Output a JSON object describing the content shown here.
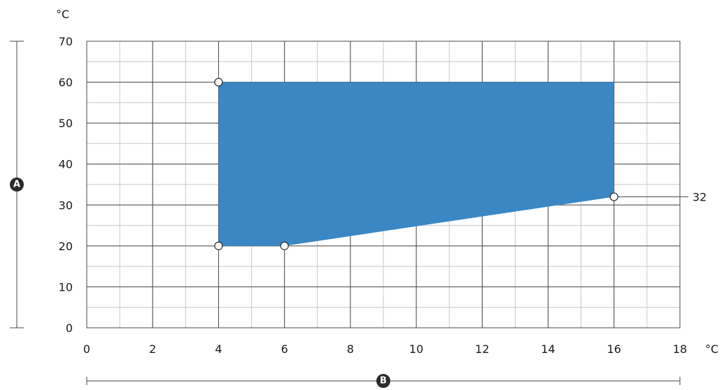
{
  "chart_data": {
    "type": "area",
    "title": "",
    "x_unit": "°C",
    "y_unit": "°C",
    "xlim": [
      0,
      18
    ],
    "ylim": [
      0,
      70
    ],
    "x_ticks": [
      "0",
      "2",
      "4",
      "6",
      "8",
      "10",
      "12",
      "14",
      "16",
      "18"
    ],
    "y_ticks": [
      "0",
      "10",
      "20",
      "30",
      "40",
      "50",
      "60",
      "70"
    ],
    "x_minor_step": 1,
    "y_minor_step": 5,
    "grid": true,
    "fill_color": "#3a87c4",
    "region": [
      {
        "x": 4,
        "y": 60
      },
      {
        "x": 16,
        "y": 60
      },
      {
        "x": 16,
        "y": 32
      },
      {
        "x": 6,
        "y": 20
      },
      {
        "x": 4,
        "y": 20
      }
    ],
    "vertices": [
      {
        "x": 4,
        "y": 60
      },
      {
        "x": 4,
        "y": 20
      },
      {
        "x": 6,
        "y": 20
      },
      {
        "x": 16,
        "y": 32
      }
    ],
    "annotations": [
      {
        "text": "32",
        "x": 16,
        "y": 32
      }
    ],
    "axis_markers": {
      "y": "A",
      "x": "B"
    }
  }
}
